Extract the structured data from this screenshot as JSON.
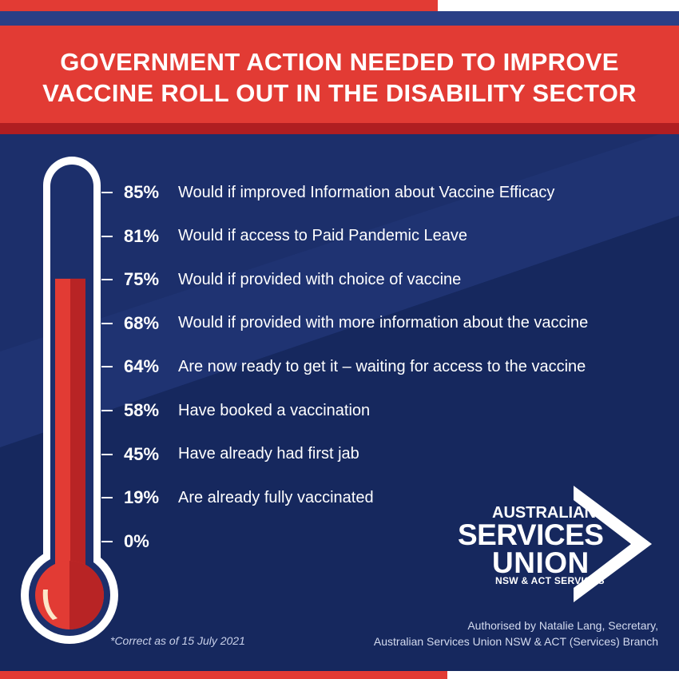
{
  "title": {
    "line1": "GOVERNMENT ACTION NEEDED TO IMPROVE",
    "line2": "VACCINE ROLL OUT IN THE DISABILITY SECTOR"
  },
  "colors": {
    "accent_red": "#e23b34",
    "navy": "#1c2f6b",
    "white": "#ffffff"
  },
  "chart_data": {
    "type": "bar",
    "orientation": "vertical-thermometer",
    "ylim": [
      0,
      100
    ],
    "fill_value": 64,
    "items": [
      {
        "value": 85,
        "label": "85%",
        "text": "Would if improved Information about Vaccine Efficacy"
      },
      {
        "value": 81,
        "label": "81%",
        "text": "Would if access to Paid Pandemic Leave"
      },
      {
        "value": 75,
        "label": "75%",
        "text": "Would if provided with choice of vaccine"
      },
      {
        "value": 68,
        "label": "68%",
        "text": "Would if provided with more information about the vaccine"
      },
      {
        "value": 64,
        "label": "64%",
        "text": "Are now ready to get it – waiting for access to the vaccine"
      },
      {
        "value": 58,
        "label": "58%",
        "text": "Have booked a vaccination"
      },
      {
        "value": 45,
        "label": "45%",
        "text": "Have already had first jab"
      },
      {
        "value": 19,
        "label": "19%",
        "text": "Are already fully vaccinated"
      },
      {
        "value": 0,
        "label": "0%",
        "text": ""
      }
    ]
  },
  "footnote": "*Correct as of 15 July 2021",
  "authorised": {
    "line1": "Authorised by Natalie Lang, Secretary,",
    "line2": "Australian Services Union NSW & ACT (Services) Branch"
  },
  "logo": {
    "line1": "AUSTRALIAN",
    "line2": "SERVICES",
    "line3": "UNION",
    "line4": "NSW & ACT SERVICES",
    "icon": "chevron-right-icon"
  }
}
